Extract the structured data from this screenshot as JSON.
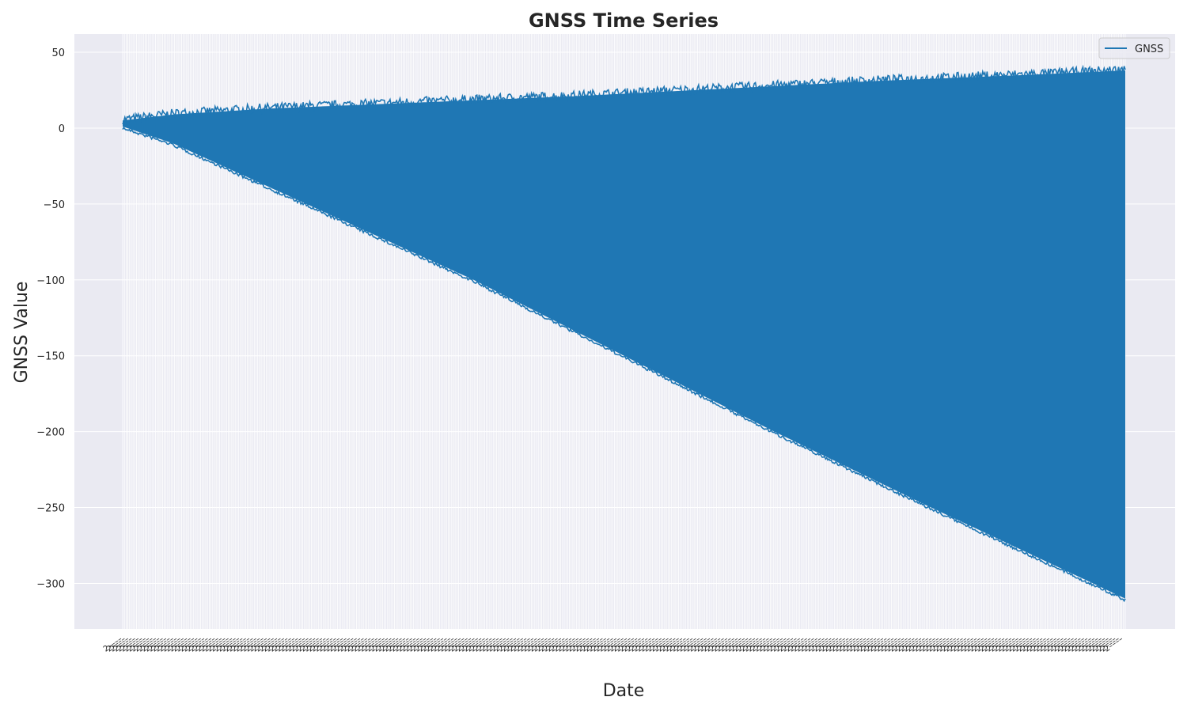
{
  "chart_data": {
    "type": "line",
    "title": "GNSS Time Series",
    "xlabel": "Date",
    "ylabel": "GNSS Value",
    "ylim": [
      -330,
      62
    ],
    "yticks": [
      50,
      0,
      -50,
      -100,
      -150,
      -200,
      -250,
      -300
    ],
    "ytick_labels": [
      "50",
      "0",
      "−50",
      "−100",
      "−150",
      "−200",
      "−250",
      "−300"
    ],
    "grid": true,
    "legend": {
      "placement": "top-right",
      "entries": [
        "GNSS"
      ]
    },
    "x_tick_count": 580,
    "x_tick_labels_note": "dense overlapping date labels rotated ~35°, unreadable",
    "series": [
      {
        "name": "GNSS",
        "color": "#1f77b4",
        "envelope": {
          "x_index_range": [
            0,
            1
          ],
          "upper": [
            [
              0.0,
              5
            ],
            [
              0.05,
              9
            ],
            [
              0.15,
              13
            ],
            [
              0.3,
              17
            ],
            [
              0.45,
              21
            ],
            [
              0.6,
              26
            ],
            [
              0.75,
              31
            ],
            [
              0.9,
              35
            ],
            [
              1.0,
              38
            ]
          ],
          "lower": [
            [
              0.0,
              1
            ],
            [
              0.05,
              -10
            ],
            [
              0.2,
              -55
            ],
            [
              0.35,
              -100
            ],
            [
              0.5,
              -150
            ],
            [
              0.65,
              -200
            ],
            [
              0.8,
              -248
            ],
            [
              1.0,
              -310
            ]
          ]
        }
      }
    ]
  },
  "colors": {
    "plot_bg": "#eaeaf2",
    "grid": "#ffffff",
    "line": "#1f77b4",
    "text": "#262626"
  }
}
